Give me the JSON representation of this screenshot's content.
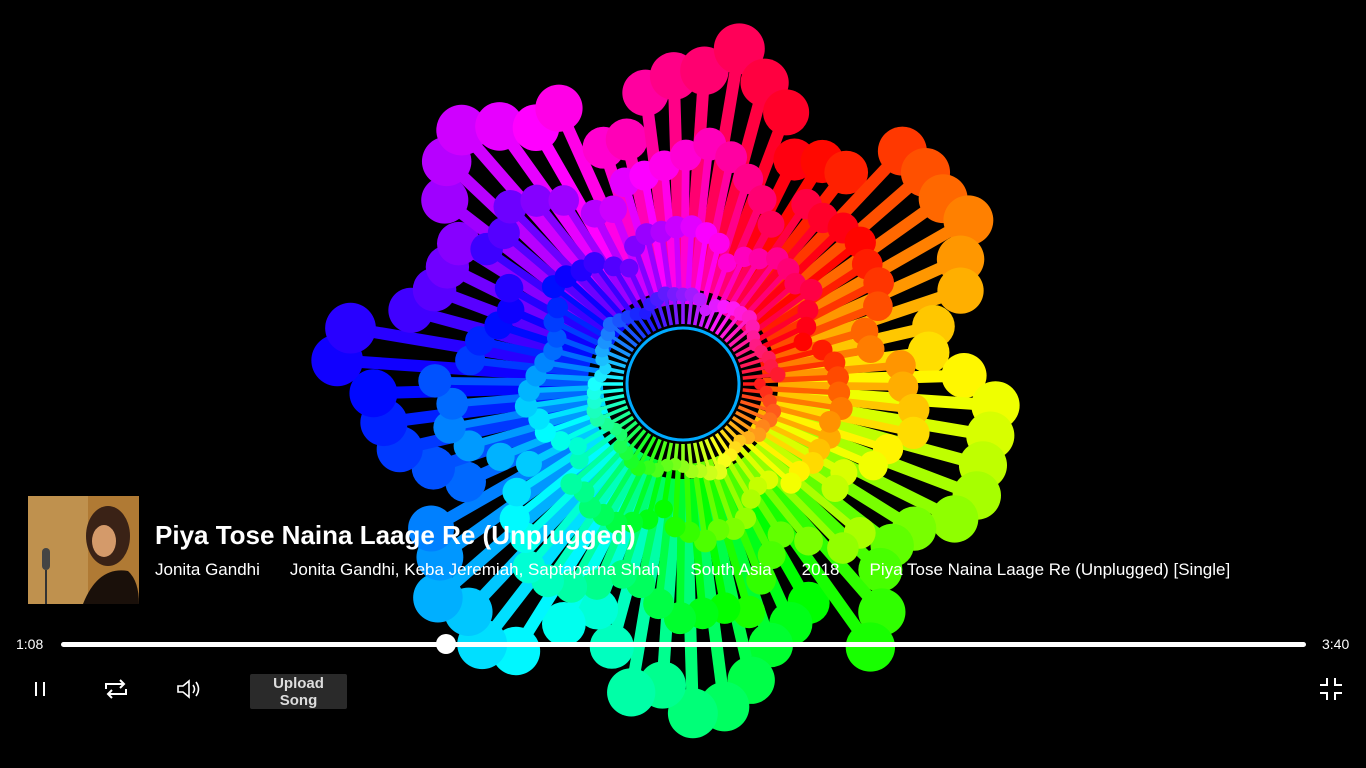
{
  "player": {
    "title": "Piya Tose Naina Laage Re (Unplugged)",
    "artist": "Jonita Gandhi",
    "contributors": "Jonita Gandhi, Keba Jeremiah, Saptaparna Shah",
    "region": "South Asia",
    "year": "2018",
    "album": "Piya Tose Naina Laage Re (Unplugged) [Single]",
    "current_time": "1:08",
    "total_time": "3:40",
    "progress_fraction": 0.309
  },
  "controls": {
    "pause_icon": "pause-icon",
    "repeat_icon": "repeat-icon",
    "volume_icon": "volume-icon",
    "upload_label": "Upload Song",
    "fullscreen_icon": "exit-fullscreen-icon"
  },
  "colors": {
    "background": "#000000",
    "text": "#ffffff",
    "upload_button_bg": "#2a2a2a"
  }
}
